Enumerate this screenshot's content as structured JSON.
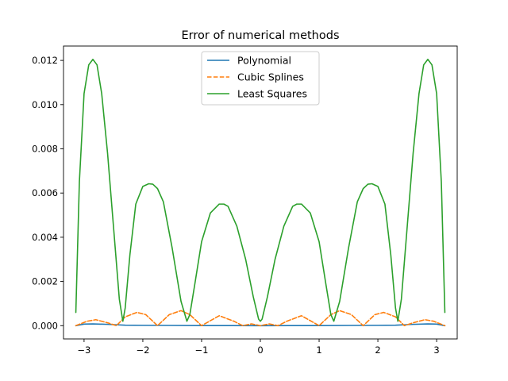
{
  "chart_data": {
    "type": "line",
    "title": "Error of numerical methods",
    "xlabel": "",
    "ylabel": "",
    "xlim": [
      -3.35,
      3.35
    ],
    "ylim": [
      -0.0006,
      0.01265
    ],
    "xticks": [
      -3,
      -2,
      -1,
      0,
      1,
      2,
      3
    ],
    "xtick_labels": [
      "−3",
      "−2",
      "−1",
      "0",
      "1",
      "2",
      "3"
    ],
    "yticks": [
      0.0,
      0.002,
      0.004,
      0.006,
      0.008,
      0.01,
      0.012
    ],
    "ytick_labels": [
      "0.000",
      "0.002",
      "0.004",
      "0.006",
      "0.008",
      "0.010",
      "0.012"
    ],
    "grid": false,
    "legend_position": "top-center",
    "series": [
      {
        "name": "Polynomial",
        "color": "#1f77b4",
        "dash": "solid",
        "x": [
          -3.14,
          -3.0,
          -2.85,
          -2.6,
          -2.3,
          -2.0,
          -1.5,
          -1.0,
          -0.5,
          0.0,
          0.5,
          1.0,
          1.5,
          2.0,
          2.3,
          2.6,
          2.85,
          3.0,
          3.14
        ],
        "y": [
          0.0,
          7e-05,
          8e-05,
          6e-05,
          2e-05,
          1.5e-05,
          1e-05,
          5e-06,
          3e-06,
          0.0,
          3e-06,
          5e-06,
          1e-05,
          1.5e-05,
          2e-05,
          6e-05,
          8e-05,
          7e-05,
          0.0
        ]
      },
      {
        "name": "Cubic Splines",
        "color": "#ff7f0e",
        "dash": "dashed",
        "x": [
          -3.14,
          -2.95,
          -2.8,
          -2.6,
          -2.45,
          -2.3,
          -2.1,
          -1.95,
          -1.75,
          -1.55,
          -1.35,
          -1.2,
          -1.0,
          -0.7,
          -0.45,
          -0.3,
          -0.15,
          0.0,
          0.15,
          0.3,
          0.45,
          0.7,
          1.0,
          1.2,
          1.35,
          1.55,
          1.75,
          1.95,
          2.1,
          2.3,
          2.45,
          2.6,
          2.8,
          2.95,
          3.14
        ],
        "y": [
          0.0,
          0.0002,
          0.00027,
          0.00013,
          0.0,
          0.0004,
          0.0006,
          0.0005,
          0.0,
          0.0005,
          0.00068,
          0.0005,
          0.0,
          0.00045,
          0.0002,
          0.0,
          8e-05,
          0.0,
          8e-05,
          0.0,
          0.0002,
          0.00045,
          0.0,
          0.0005,
          0.00068,
          0.0005,
          0.0,
          0.0005,
          0.0006,
          0.0004,
          0.0,
          0.00013,
          0.00027,
          0.0002,
          0.0
        ]
      },
      {
        "name": "Least Squares",
        "color": "#2ca02c",
        "dash": "solid",
        "x": [
          -3.14,
          -3.08,
          -3.0,
          -2.92,
          -2.85,
          -2.78,
          -2.7,
          -2.6,
          -2.5,
          -2.4,
          -2.34,
          -2.3,
          -2.22,
          -2.12,
          -2.0,
          -1.9,
          -1.83,
          -1.75,
          -1.65,
          -1.5,
          -1.35,
          -1.25,
          -1.2,
          -1.12,
          -1.0,
          -0.85,
          -0.7,
          -0.62,
          -0.55,
          -0.4,
          -0.25,
          -0.12,
          -0.03,
          0.0,
          0.03,
          0.12,
          0.25,
          0.4,
          0.55,
          0.62,
          0.7,
          0.85,
          1.0,
          1.12,
          1.2,
          1.25,
          1.35,
          1.5,
          1.65,
          1.75,
          1.83,
          1.9,
          2.0,
          2.12,
          2.22,
          2.3,
          2.34,
          2.4,
          2.5,
          2.6,
          2.7,
          2.78,
          2.85,
          2.92,
          3.0,
          3.08,
          3.14
        ],
        "y": [
          0.0006,
          0.0065,
          0.0105,
          0.0118,
          0.01205,
          0.0118,
          0.0105,
          0.0078,
          0.0045,
          0.0012,
          0.0002,
          0.0008,
          0.0032,
          0.0055,
          0.0063,
          0.00642,
          0.0064,
          0.0062,
          0.0056,
          0.0035,
          0.0011,
          0.0002,
          0.0005,
          0.0018,
          0.0038,
          0.0051,
          0.0055,
          0.0055,
          0.0054,
          0.0045,
          0.003,
          0.0013,
          0.0003,
          0.0002,
          0.0003,
          0.0013,
          0.003,
          0.0045,
          0.0054,
          0.0055,
          0.0055,
          0.0051,
          0.0038,
          0.0018,
          0.0005,
          0.0002,
          0.0011,
          0.0035,
          0.0056,
          0.0062,
          0.0064,
          0.00642,
          0.0063,
          0.0055,
          0.0032,
          0.0008,
          0.0002,
          0.0012,
          0.0045,
          0.0078,
          0.0105,
          0.0118,
          0.01205,
          0.0118,
          0.0105,
          0.0065,
          0.0006
        ]
      }
    ]
  }
}
